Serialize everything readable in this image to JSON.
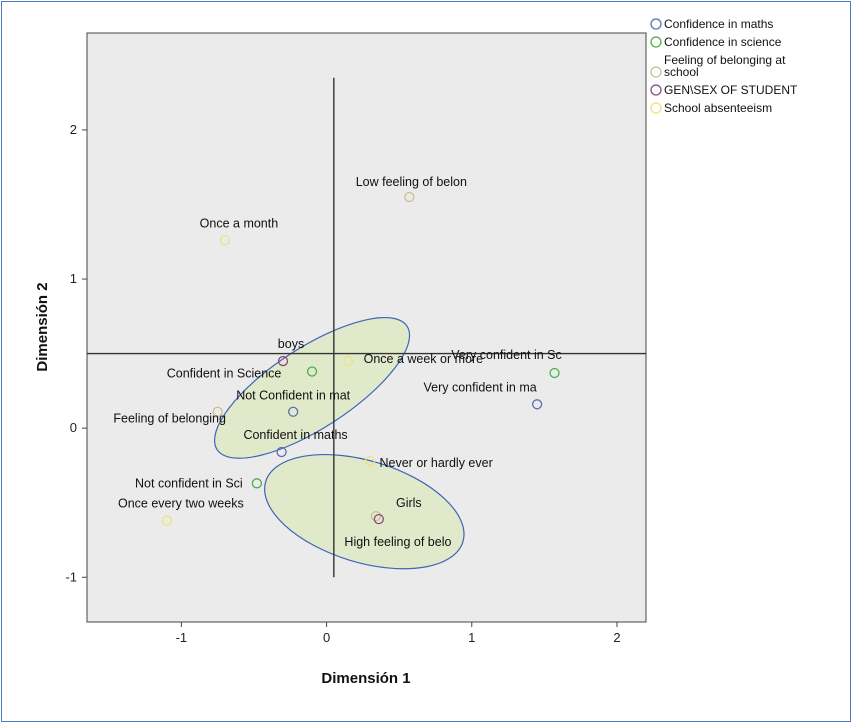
{
  "chart_data": {
    "type": "scatter",
    "xlabel": "Dimensión 1",
    "ylabel": "Dimensión 2",
    "xlim": [
      -1.65,
      2.2
    ],
    "ylim": [
      -1.3,
      2.65
    ],
    "xticks": [
      -1,
      0,
      1,
      2
    ],
    "yticks": [
      -1,
      0,
      1,
      2
    ],
    "grid": false,
    "legend_placement": "top-right-outside",
    "reference_lines": {
      "vertical_x": 0.05,
      "horizontal_y": 0.5
    },
    "series": [
      {
        "name": "Confidence in maths",
        "color": "#5b6fb0",
        "points": [
          {
            "label": "Very confident in ma",
            "x": 1.45,
            "y": 0.16
          },
          {
            "label": "Not Confident in mat",
            "x": -0.23,
            "y": 0.11
          },
          {
            "label": "Confident in maths",
            "x": -0.31,
            "y": -0.16
          }
        ]
      },
      {
        "name": "Confidence in science",
        "color": "#4caf50",
        "points": [
          {
            "label": "Very confident in Sc",
            "x": 1.57,
            "y": 0.37
          },
          {
            "label": "Confident in Science",
            "x": -0.1,
            "y": 0.38
          },
          {
            "label": "Not confident in Sci",
            "x": -0.48,
            "y": -0.37
          }
        ]
      },
      {
        "name": "Feeling of belonging at school",
        "color": "#c9c08a",
        "points": [
          {
            "label": "Low feeling of belon",
            "x": 0.57,
            "y": 1.55
          },
          {
            "label": "Feeling of belonging",
            "x": -0.75,
            "y": 0.11
          },
          {
            "label": "High feeling of belo",
            "x": 0.34,
            "y": -0.59
          }
        ]
      },
      {
        "name": "GEN\\SEX OF STUDENT",
        "color": "#8a4a80",
        "points": [
          {
            "label": "boys",
            "x": -0.3,
            "y": 0.45
          },
          {
            "label": "Girls",
            "x": 0.36,
            "y": -0.61
          }
        ]
      },
      {
        "name": "School absenteeism",
        "color": "#f0e27a",
        "points": [
          {
            "label": "Once a month",
            "x": -0.7,
            "y": 1.26
          },
          {
            "label": "Once a week or more",
            "x": 0.15,
            "y": 0.45
          },
          {
            "label": "Never or hardly ever",
            "x": 0.3,
            "y": -0.22
          },
          {
            "label": "Once every two weeks",
            "x": -1.1,
            "y": -0.62
          }
        ]
      }
    ],
    "ellipses": [
      {
        "cx": -0.1,
        "cy": 0.27,
        "rx": 0.78,
        "ry": 0.27,
        "angle_deg": -33,
        "fill": "#dfe9c6",
        "stroke": "#3f64b8"
      },
      {
        "cx": 0.26,
        "cy": -0.56,
        "rx": 0.71,
        "ry": 0.34,
        "angle_deg": 17,
        "fill": "#dfe9c6",
        "stroke": "#3f64b8"
      }
    ]
  },
  "legend_lines": [
    [
      "Confidence in maths"
    ],
    [
      "Confidence in science"
    ],
    [
      "Feeling of belonging at",
      "school"
    ],
    [
      "GEN\\SEX OF STUDENT"
    ],
    [
      "School absenteeism"
    ]
  ]
}
